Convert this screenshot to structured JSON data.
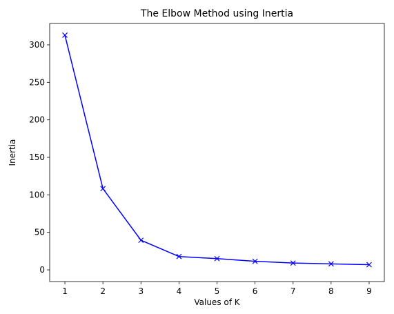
{
  "chart_data": {
    "type": "line",
    "title": "The Elbow Method using Inertia",
    "xlabel": "Values of K",
    "ylabel": "Inertia",
    "xlim": [
      0.6,
      9.4
    ],
    "ylim": [
      -15.6,
      328.5
    ],
    "x_ticks": [
      1,
      2,
      3,
      4,
      5,
      6,
      7,
      8,
      9
    ],
    "y_ticks": [
      0,
      50,
      100,
      150,
      200,
      250,
      300
    ],
    "grid": false,
    "marker": "x",
    "line_color": "#0000ff",
    "series": [
      {
        "x": [
          1,
          2,
          3,
          4,
          5,
          6,
          7,
          8,
          9
        ],
        "values": [
          312.9,
          108.3,
          39.5,
          17.8,
          15.0,
          11.4,
          9.1,
          8.0,
          6.9
        ]
      }
    ]
  }
}
